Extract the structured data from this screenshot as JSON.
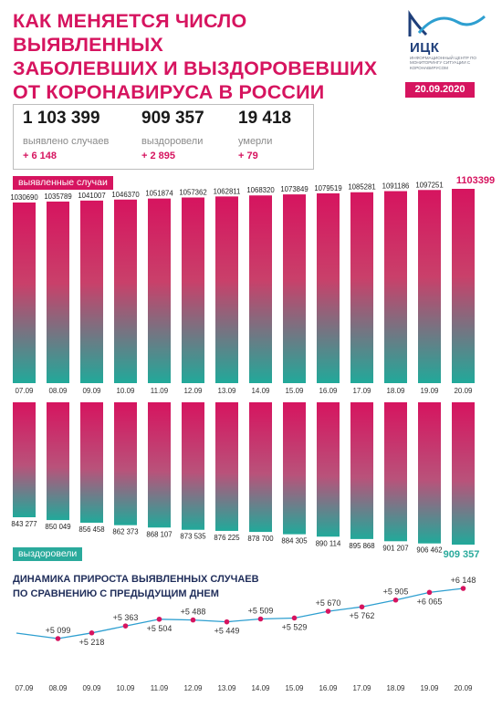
{
  "title_lines": [
    "КАК МЕНЯЕТСЯ ЧИСЛО ВЫЯВЛЕННЫХ",
    "ЗАБОЛЕВШИХ И ВЫЗДОРОВЕВШИХ",
    "ОТ КОРОНАВИРУСА В РОССИИ"
  ],
  "logo": {
    "name": "ИЦК",
    "subtitle": "ИНФОРМАЦИОННЫЙ ЦЕНТР ПО МОНИТОРИНГУ СИТУАЦИИ С КОРОНАВИРУСОМ"
  },
  "date": "20.09.2020",
  "stats": {
    "cases": {
      "value": "1 103 399",
      "label": "выявлено случаев",
      "delta": "+ 6 148"
    },
    "recovered": {
      "value": "909 357",
      "label": "выздоровели",
      "delta": "+ 2 895"
    },
    "deaths": {
      "value": "19 418",
      "label": "умерли",
      "delta": "+ 79"
    }
  },
  "labels": {
    "cases_tag": "выявленные случаи",
    "recovered_tag": "выздоровели",
    "dynamics_title_1": "ДИНАМИКА ПРИРОСТА ВЫЯВЛЕННЫХ СЛУЧАЕВ",
    "dynamics_title_2": "ПО СРАВНЕНИЮ С ПРЕДЫДУЩИМ ДНЕМ"
  },
  "colors": {
    "pink": "#d6145f",
    "teal": "#2aaa9c",
    "line": "#2e9fd0",
    "point": "#d6145f"
  },
  "chart_data": [
    {
      "type": "bar",
      "categories": [
        "07.09",
        "08.09",
        "09.09",
        "10.09",
        "11.09",
        "12.09",
        "13.09",
        "14.09",
        "15.09",
        "16.09",
        "17.09",
        "18.09",
        "19.09",
        "20.09"
      ],
      "values": [
        1030690,
        1035789,
        1041007,
        1046370,
        1051874,
        1057362,
        1062811,
        1068320,
        1073849,
        1079519,
        1085281,
        1091186,
        1097251,
        1103399
      ],
      "labels": [
        "1030690",
        "1035789",
        "1041007",
        "1046370",
        "1051874",
        "1057362",
        "1062811",
        "1068320",
        "1073849",
        "1079519",
        "1085281",
        "1091186",
        "1097251",
        "1103399"
      ],
      "series_label": "выявленные случаи"
    },
    {
      "type": "bar",
      "categories": [
        "07.09",
        "08.09",
        "09.09",
        "10.09",
        "11.09",
        "12.09",
        "13.09",
        "14.09",
        "15.09",
        "16.09",
        "17.09",
        "18.09",
        "19.09",
        "20.09"
      ],
      "values": [
        843277,
        850049,
        856458,
        862373,
        868107,
        873535,
        876225,
        878700,
        884305,
        890114,
        895868,
        901207,
        906462,
        909357
      ],
      "labels": [
        "843 277",
        "850 049",
        "856 458",
        "862 373",
        "868 107",
        "873 535",
        "876 225",
        "878 700",
        "884 305",
        "890 114",
        "895 868",
        "901 207",
        "906 462",
        "909 357"
      ],
      "series_label": "выздоровели"
    },
    {
      "type": "line",
      "title": "ДИНАМИКА ПРИРОСТА ВЫЯВЛЕННЫХ СЛУЧАЕВ ПО СРАВНЕНИЮ С ПРЕДЫДУЩИМ ДНЕМ",
      "categories": [
        "07.09",
        "08.09",
        "09.09",
        "10.09",
        "11.09",
        "12.09",
        "13.09",
        "14.09",
        "15.09",
        "16.09",
        "17.09",
        "18.09",
        "19.09",
        "20.09"
      ],
      "values": [
        null,
        5099,
        5218,
        5363,
        5504,
        5488,
        5449,
        5509,
        5529,
        5670,
        5762,
        5905,
        6065,
        6148
      ],
      "labels": [
        "",
        "+5 099",
        "+5 218",
        "+5 363",
        "+5 504",
        "+5 488",
        "+5 449",
        "+5 509",
        "+5 529",
        "+5 670",
        "+5 762",
        "+5 905",
        "+6 065",
        "+6 148"
      ]
    }
  ]
}
